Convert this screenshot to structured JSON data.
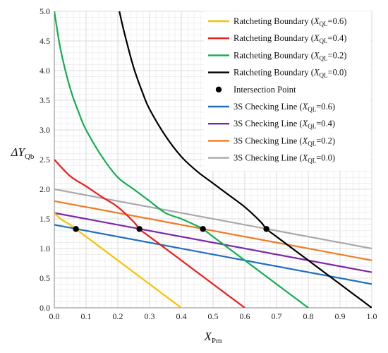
{
  "chart_data": {
    "type": "line",
    "xlabel": {
      "main": "X",
      "sub": "Pm"
    },
    "ylabel": {
      "prefix": "ΔY",
      "sub": "Qb"
    },
    "xlim": [
      0,
      1
    ],
    "ylim": [
      0,
      5
    ],
    "x_ticks": [
      "0.0",
      "0.1",
      "0.2",
      "0.3",
      "0.4",
      "0.5",
      "0.6",
      "0.7",
      "0.8",
      "0.9",
      "1.0"
    ],
    "y_ticks": [
      "0.0",
      "0.5",
      "1.0",
      "1.5",
      "2.0",
      "2.5",
      "3.0",
      "3.5",
      "4.0",
      "4.5",
      "5.0"
    ],
    "x_tick_values": [
      0,
      0.1,
      0.2,
      0.3,
      0.4,
      0.5,
      0.6,
      0.7,
      0.8,
      0.9,
      1.0
    ],
    "y_tick_values": [
      0,
      0.5,
      1.0,
      1.5,
      2.0,
      2.5,
      3.0,
      3.5,
      4.0,
      4.5,
      5.0
    ],
    "grid": true,
    "legend_position": "top-right",
    "series": [
      {
        "name": {
          "prefix": "Ratcheting Boundary (",
          "var": "X",
          "sub": "QL",
          "suffix": "=0.6)"
        },
        "kind": "line",
        "color": "#f5c400",
        "x": [
          0.0,
          0.02,
          0.05,
          0.068,
          0.1,
          0.15,
          0.2,
          0.25,
          0.3,
          0.35,
          0.4
        ],
        "y": [
          1.6,
          1.5,
          1.4,
          1.33,
          1.2,
          1.0,
          0.8,
          0.6,
          0.4,
          0.2,
          0.0
        ]
      },
      {
        "name": {
          "prefix": "Ratcheting Boundary (",
          "var": "X",
          "sub": "QL",
          "suffix": "=0.4)"
        },
        "kind": "line",
        "color": "#ee1c1c",
        "x": [
          0.0,
          0.05,
          0.1,
          0.15,
          0.2,
          0.25,
          0.268,
          0.3,
          0.35,
          0.4,
          0.45,
          0.5,
          0.55,
          0.6
        ],
        "y": [
          2.5,
          2.22,
          2.05,
          1.87,
          1.7,
          1.45,
          1.33,
          1.2,
          1.0,
          0.8,
          0.6,
          0.4,
          0.2,
          0.0
        ]
      },
      {
        "name": {
          "prefix": "Ratcheting Boundary (",
          "var": "X",
          "sub": "QL",
          "suffix": "=0.2)"
        },
        "kind": "line",
        "color": "#10b050",
        "x": [
          0.0,
          0.02,
          0.05,
          0.08,
          0.1,
          0.15,
          0.2,
          0.25,
          0.3,
          0.35,
          0.4,
          0.45,
          0.468,
          0.5,
          0.55,
          0.6,
          0.65,
          0.7,
          0.75,
          0.8
        ],
        "y": [
          5.0,
          4.35,
          3.7,
          3.25,
          3.0,
          2.55,
          2.2,
          2.0,
          1.8,
          1.6,
          1.5,
          1.38,
          1.33,
          1.2,
          1.0,
          0.8,
          0.6,
          0.4,
          0.2,
          0.0
        ]
      },
      {
        "name": {
          "prefix": "Ratcheting Boundary (",
          "var": "X",
          "sub": "QL",
          "suffix": "=0.0)"
        },
        "kind": "line",
        "color": "#000000",
        "x": [
          0.205,
          0.22,
          0.25,
          0.28,
          0.3,
          0.35,
          0.4,
          0.45,
          0.5,
          0.55,
          0.6,
          0.65,
          0.668,
          0.7,
          0.75,
          0.8,
          0.85,
          0.9,
          0.95,
          1.0
        ],
        "y": [
          5.0,
          4.65,
          4.05,
          3.6,
          3.35,
          2.9,
          2.55,
          2.3,
          2.1,
          1.9,
          1.7,
          1.45,
          1.33,
          1.2,
          1.0,
          0.8,
          0.6,
          0.4,
          0.2,
          0.0
        ]
      },
      {
        "name": {
          "prefix": "Intersection Point",
          "var": "",
          "sub": "",
          "suffix": ""
        },
        "kind": "scatter",
        "color": "#000000",
        "x": [
          0.068,
          0.268,
          0.468,
          0.668
        ],
        "y": [
          1.33,
          1.33,
          1.33,
          1.33
        ]
      },
      {
        "name": {
          "prefix": "3S Checking Line (",
          "var": "X",
          "sub": "QL",
          "suffix": "=0.6)"
        },
        "kind": "line",
        "color": "#1f6ec0",
        "x": [
          0.0,
          1.0
        ],
        "y": [
          1.4,
          0.4
        ]
      },
      {
        "name": {
          "prefix": "3S Checking Line (",
          "var": "X",
          "sub": "QL",
          "suffix": "=0.4)"
        },
        "kind": "line",
        "color": "#7b26a8",
        "x": [
          0.0,
          1.0
        ],
        "y": [
          1.6,
          0.6
        ]
      },
      {
        "name": {
          "prefix": "3S Checking Line (",
          "var": "X",
          "sub": "QL",
          "suffix": "=0.2)"
        },
        "kind": "line",
        "color": "#f07b22",
        "x": [
          0.0,
          1.0
        ],
        "y": [
          1.8,
          0.8
        ]
      },
      {
        "name": {
          "prefix": "3S Checking Line (",
          "var": "X",
          "sub": "QL",
          "suffix": "=0.0)"
        },
        "kind": "line",
        "color": "#a9a9a9",
        "x": [
          0.0,
          1.0
        ],
        "y": [
          2.0,
          1.0
        ]
      }
    ]
  }
}
